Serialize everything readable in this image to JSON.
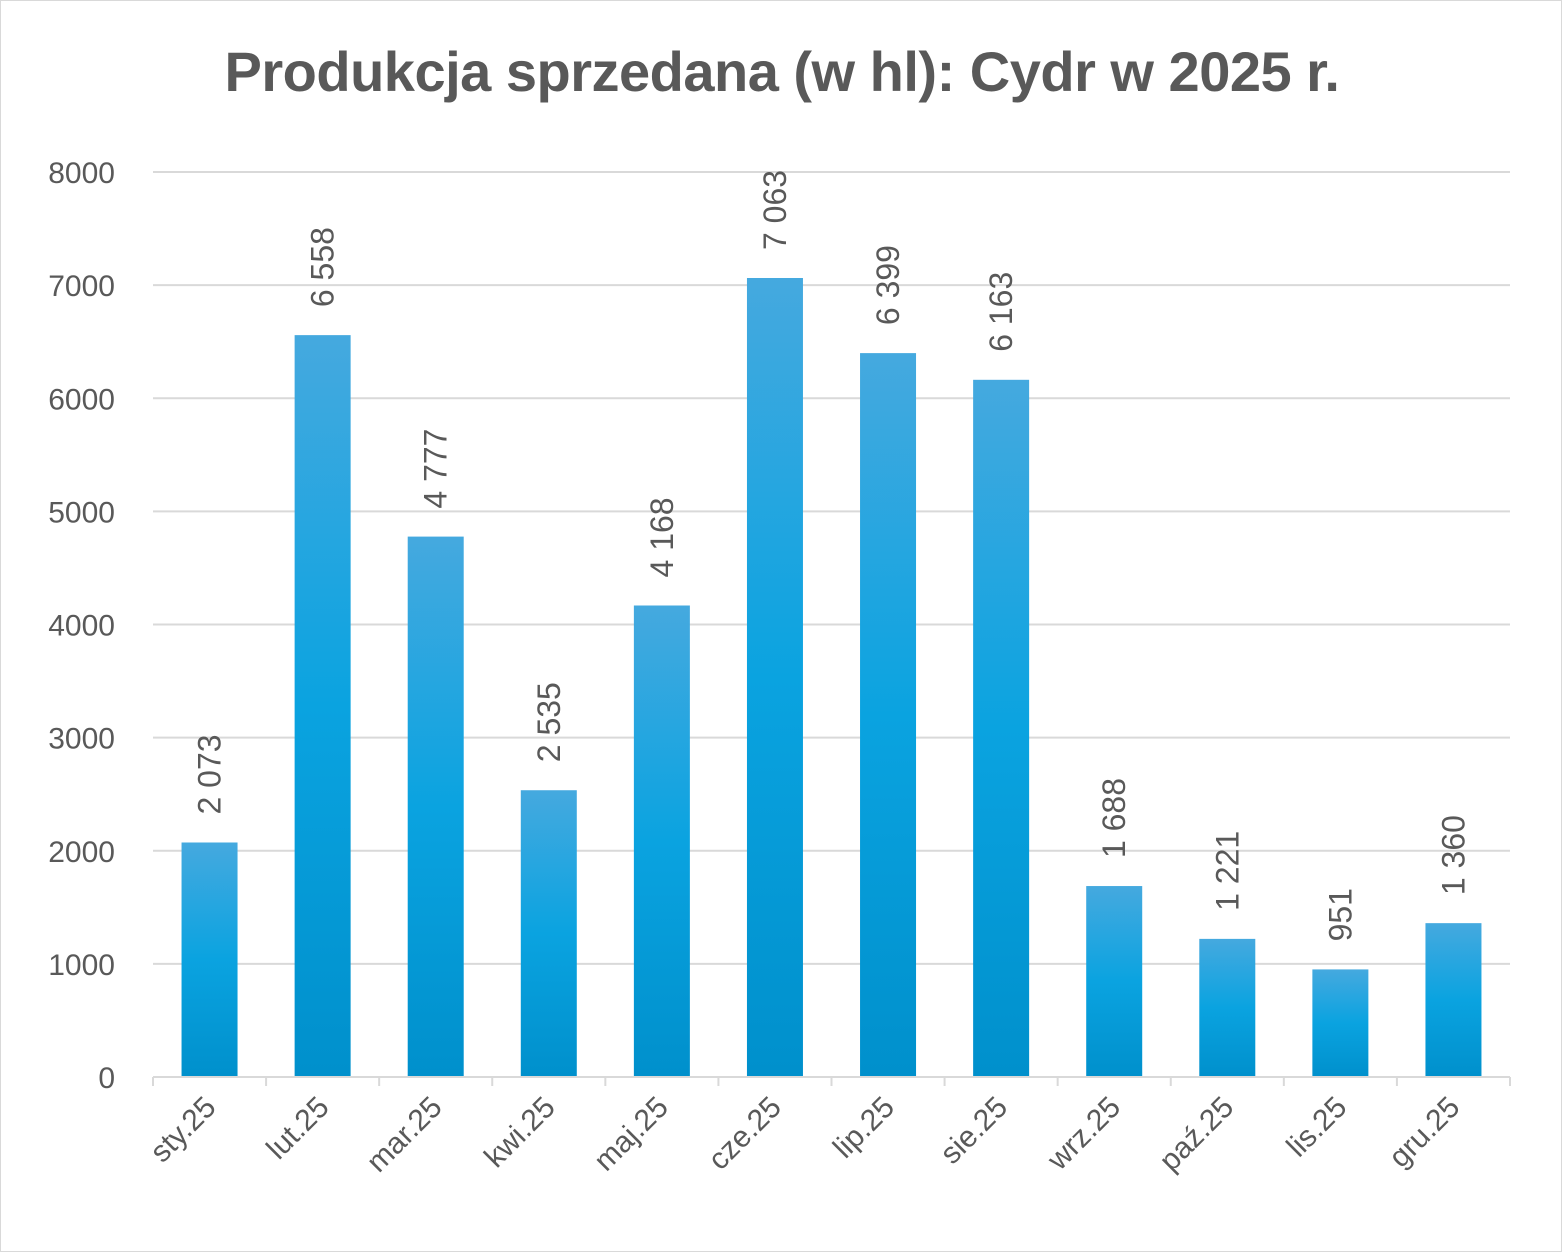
{
  "chart_data": {
    "type": "bar",
    "title": "Produkcja sprzedana (w hl): Cydr w 2025 r.",
    "categories": [
      "sty.25",
      "lut.25",
      "mar.25",
      "kwi.25",
      "maj.25",
      "cze.25",
      "lip.25",
      "sie.25",
      "wrz.25",
      "paź.25",
      "lis.25",
      "gru.25"
    ],
    "values": [
      2073,
      6558,
      4777,
      2535,
      4168,
      7063,
      6399,
      6163,
      1688,
      1221,
      951,
      1360
    ],
    "data_labels": [
      "2 073",
      "6 558",
      "4 777",
      "2 535",
      "4 168",
      "7 063",
      "6 399",
      "6 163",
      "1 688",
      "1 221",
      "951",
      "1 360"
    ],
    "y_ticks": [
      "0",
      "1000",
      "2000",
      "3000",
      "4000",
      "5000",
      "6000",
      "7000",
      "8000"
    ],
    "ylim": [
      0,
      8000
    ],
    "grid": true,
    "legend": "none",
    "colors": {
      "bar_top": "#45a9df",
      "bar_mid": "#0aa3e0",
      "bar_bottom": "#0090cc",
      "grid": "#d9d9d9",
      "text": "#595959"
    }
  }
}
